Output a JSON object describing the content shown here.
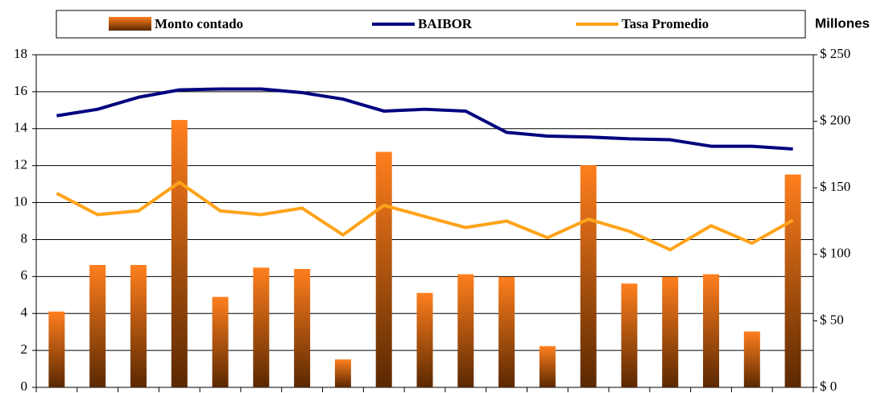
{
  "chart_data": {
    "type": "bar-line",
    "y2_label": "Millones",
    "categories": [
      null,
      null,
      null,
      null,
      null,
      null,
      null,
      null,
      null,
      null,
      null,
      null,
      null,
      null,
      null,
      null,
      null,
      null,
      null
    ],
    "series": [
      {
        "name": "Monto  contado",
        "type": "bar",
        "axis": "y2",
        "color": "#ff7f1e",
        "values": [
          57,
          92,
          92,
          201,
          68,
          90,
          89,
          21,
          177,
          71,
          85,
          83,
          31,
          167,
          78,
          83,
          85,
          42,
          160
        ]
      },
      {
        "name": "BAIBOR",
        "type": "line",
        "color": "#00007f",
        "values": [
          14.7,
          15.05,
          15.7,
          16.1,
          16.15,
          16.15,
          15.95,
          15.6,
          14.95,
          15.05,
          14.95,
          13.8,
          13.6,
          13.55,
          13.45,
          13.4,
          13.05,
          13.05,
          12.9
        ]
      },
      {
        "name": "Tasa Promedio",
        "type": "line",
        "color": "#ffa31a",
        "values": [
          10.5,
          9.35,
          9.55,
          11.1,
          9.55,
          9.35,
          9.7,
          8.25,
          9.85,
          9.25,
          8.65,
          9.0,
          8.1,
          9.1,
          8.45,
          7.45,
          8.75,
          7.8,
          9.05
        ]
      }
    ],
    "ylim": [
      0,
      18
    ],
    "yticks": [
      0,
      2,
      4,
      6,
      8,
      10,
      12,
      14,
      16,
      18
    ],
    "y2lim": [
      0,
      250
    ],
    "y2ticks": [
      {
        "value": 0,
        "label": "$ 0"
      },
      {
        "value": 50,
        "label": "$ 50"
      },
      {
        "value": 100,
        "label": "$ 100"
      },
      {
        "value": 150,
        "label": "$ 150"
      },
      {
        "value": 200,
        "label": "$ 200"
      },
      {
        "value": 250,
        "label": "$ 250"
      }
    ],
    "grid": true
  }
}
